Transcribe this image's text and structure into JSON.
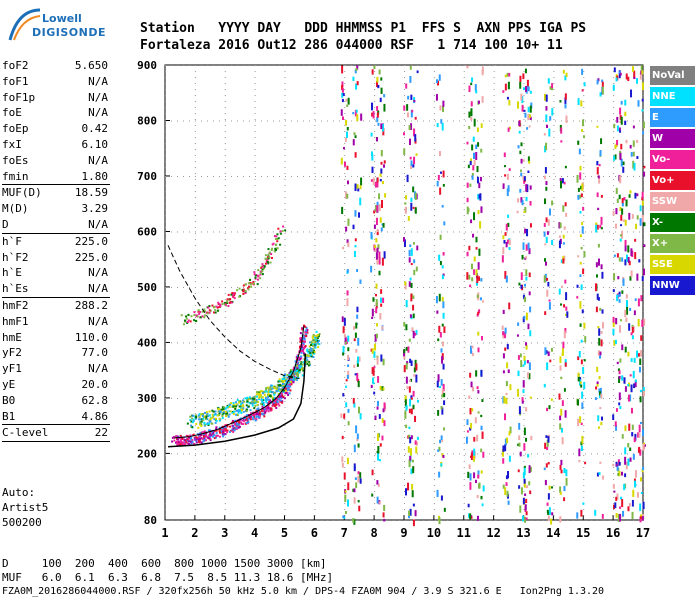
{
  "logo": {
    "line1": "Lowell",
    "line2": "DIGISONDE"
  },
  "header": {
    "row1": "Station   YYYY DAY   DDD HHMMSS P1  FFS S  AXN PPS IGA PS",
    "row2": "Fortaleza 2016 Out12 286 044000 RSF   1 714 100 10+ 11"
  },
  "params": [
    {
      "k": "foF2",
      "v": "5.650"
    },
    {
      "k": "foF1",
      "v": "N/A"
    },
    {
      "k": "foF1p",
      "v": "N/A"
    },
    {
      "k": "foE",
      "v": "N/A"
    },
    {
      "k": "foEp",
      "v": "0.42"
    },
    {
      "k": "fxI",
      "v": "6.10"
    },
    {
      "k": "foEs",
      "v": "N/A"
    },
    {
      "k": "fmin",
      "v": "1.80"
    },
    {
      "sep": true
    },
    {
      "k": "MUF(D)",
      "v": "18.59"
    },
    {
      "k": "M(D)",
      "v": "3.29"
    },
    {
      "k": "D",
      "v": "N/A"
    },
    {
      "sep": true
    },
    {
      "k": "h`F",
      "v": "225.0"
    },
    {
      "k": "h`F2",
      "v": "225.0"
    },
    {
      "k": "h`E",
      "v": "N/A"
    },
    {
      "k": "h`Es",
      "v": "N/A"
    },
    {
      "sep": true
    },
    {
      "k": "hmF2",
      "v": "288.2"
    },
    {
      "k": "hmF1",
      "v": "N/A"
    },
    {
      "k": "hmE",
      "v": "110.0"
    },
    {
      "k": "yF2",
      "v": "77.0"
    },
    {
      "k": "yF1",
      "v": "N/A"
    },
    {
      "k": "yE",
      "v": "20.0"
    },
    {
      "k": "B0",
      "v": "62.8"
    },
    {
      "k": "B1",
      "v": "4.86"
    },
    {
      "sep": true
    },
    {
      "k": "C-level",
      "v": "22"
    },
    {
      "sep": true
    }
  ],
  "auto": {
    "l1": "Auto:",
    "l2": "Artist5",
    "l3": "500200"
  },
  "bottom": {
    "row1": "D     100  200  400  600  800 1000 1500 3000 [km]",
    "row2": "MUF   6.0  6.1  6.3  6.8  7.5  8.5 11.3 18.6 [MHz]"
  },
  "footer": "FZA0M_2016286044000.RSF / 320fx256h 50 kHz 5.0 km / DPS-4 FZA0M 904 / 3.9 S 321.6 E   Ion2Png 1.3.20",
  "legend": [
    {
      "label": "NoVal",
      "color": "#808080"
    },
    {
      "label": "NNE",
      "color": "#00e0ff"
    },
    {
      "label": "E",
      "color": "#2e9bff"
    },
    {
      "label": "W",
      "color": "#a000a8"
    },
    {
      "label": "Vo-",
      "color": "#f0209a"
    },
    {
      "label": "Vo+",
      "color": "#e8102a"
    },
    {
      "label": "SSW",
      "color": "#f0a8a8"
    },
    {
      "label": "X-",
      "color": "#007800"
    },
    {
      "label": "X+",
      "color": "#80b848"
    },
    {
      "label": "SSE",
      "color": "#d8d800"
    },
    {
      "label": "NNW",
      "color": "#1818d0"
    }
  ],
  "chart_data": {
    "type": "scatter",
    "title": "",
    "xlabel": "",
    "ylabel": "",
    "xlim": [
      1,
      17
    ],
    "ylim": [
      80,
      900
    ],
    "x_ticks": [
      "1",
      "2",
      "3",
      "4",
      "5",
      "6",
      "7",
      "8",
      "9",
      "10",
      "11",
      "12",
      "13",
      "14",
      "15",
      "16",
      "17"
    ],
    "y_ticks": [
      "80",
      "200",
      "300",
      "400",
      "500",
      "600",
      "700",
      "800",
      "900"
    ],
    "traces": {
      "o_trace": [
        [
          1.3,
          228
        ],
        [
          1.8,
          230
        ],
        [
          2.3,
          236
        ],
        [
          2.8,
          244
        ],
        [
          3.3,
          256
        ],
        [
          3.8,
          268
        ],
        [
          4.3,
          282
        ],
        [
          4.7,
          298
        ],
        [
          5.0,
          318
        ],
        [
          5.3,
          348
        ],
        [
          5.55,
          390
        ],
        [
          5.65,
          430
        ]
      ],
      "x_trace": [
        [
          1.8,
          262
        ],
        [
          2.5,
          272
        ],
        [
          3.2,
          285
        ],
        [
          3.8,
          296
        ],
        [
          4.4,
          312
        ],
        [
          4.9,
          330
        ],
        [
          5.4,
          352
        ],
        [
          5.8,
          385
        ],
        [
          6.1,
          420
        ]
      ],
      "multi_hop": [
        [
          1.6,
          446
        ],
        [
          2.1,
          455
        ],
        [
          2.6,
          466
        ],
        [
          3.1,
          482
        ],
        [
          3.6,
          500
        ],
        [
          4.0,
          520
        ],
        [
          4.3,
          545
        ],
        [
          4.6,
          575
        ],
        [
          4.9,
          610
        ]
      ],
      "profile_curve": [
        [
          1.1,
          212
        ],
        [
          2.0,
          215
        ],
        [
          3.0,
          222
        ],
        [
          4.0,
          233
        ],
        [
          4.8,
          246
        ],
        [
          5.3,
          262
        ],
        [
          5.55,
          290
        ],
        [
          5.65,
          330
        ],
        [
          5.7,
          380
        ]
      ],
      "dashed_curve": [
        [
          1.1,
          575
        ],
        [
          1.5,
          528
        ],
        [
          2.0,
          480
        ],
        [
          2.5,
          440
        ],
        [
          3.0,
          410
        ],
        [
          3.5,
          385
        ],
        [
          4.0,
          366
        ],
        [
          4.5,
          352
        ],
        [
          5.0,
          340
        ],
        [
          5.5,
          335
        ]
      ]
    },
    "noise_columns": [
      7.0,
      7.4,
      8.0,
      8.2,
      9.1,
      9.3,
      10.2,
      11.2,
      11.5,
      12.4,
      12.9,
      13.1,
      13.8,
      14.3,
      14.9,
      15.5,
      16.1,
      16.3,
      16.6,
      16.9
    ]
  }
}
